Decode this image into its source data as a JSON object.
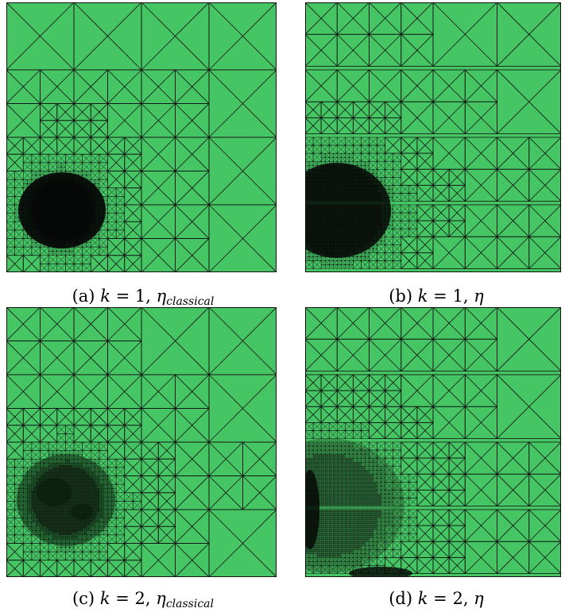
{
  "figure": {
    "mesh_color": "#45c564",
    "line_color": "#111111",
    "panels": [
      {
        "id": "a",
        "label": "(a)",
        "k_label": "k",
        "k_value": "1",
        "estimator": "η",
        "estimator_sub": "classical",
        "caption_text": "(a) k = 1, ηclassical"
      },
      {
        "id": "b",
        "label": "(b)",
        "k_label": "k",
        "k_value": "1",
        "estimator": "η",
        "estimator_sub": "",
        "caption_text": "(b) k = 1, η"
      },
      {
        "id": "c",
        "label": "(c)",
        "k_label": "k",
        "k_value": "2",
        "estimator": "η",
        "estimator_sub": "classical",
        "caption_text": "(c) k = 2, ηclassical"
      },
      {
        "id": "d",
        "label": "(d)",
        "k_label": "k",
        "k_value": "2",
        "estimator": "η",
        "estimator_sub": "",
        "caption_text": "(d) k = 2, η"
      }
    ]
  }
}
